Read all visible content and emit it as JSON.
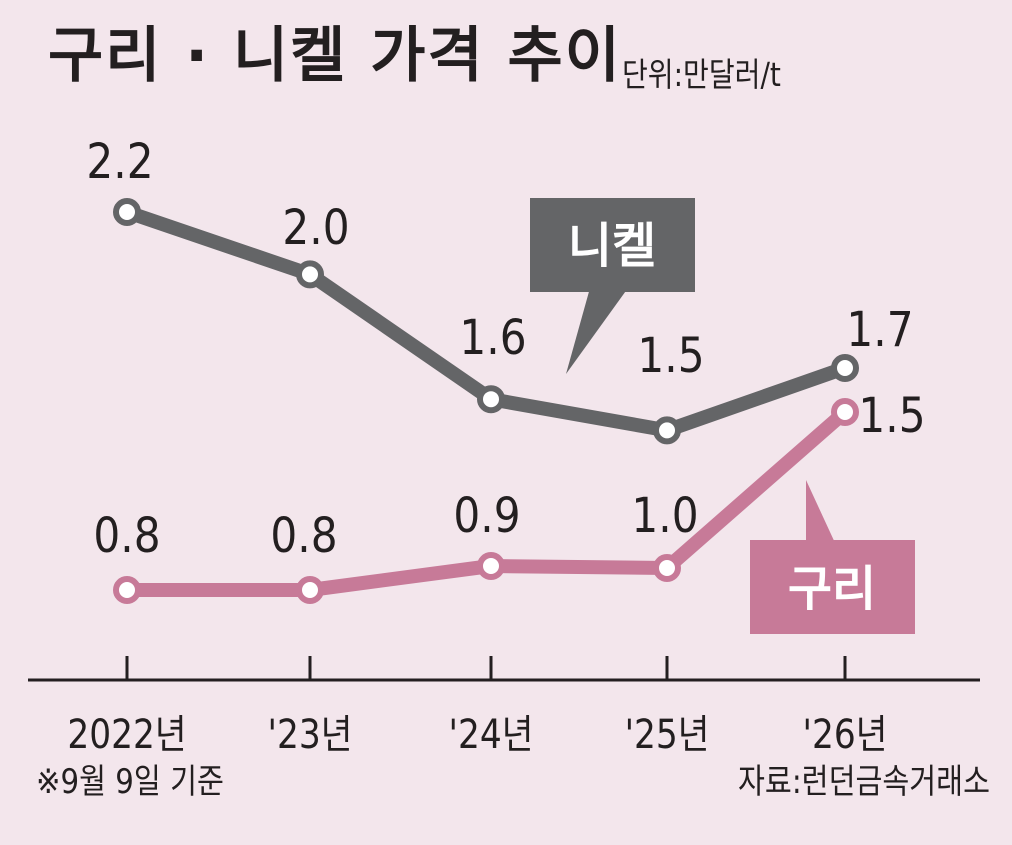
{
  "title": "구리 · 니켈 가격 추이",
  "unit": "단위:만달러/t",
  "note": "※9월 9일 기준",
  "source": "자료:런던금속거래소",
  "colors": {
    "background": "#f3e6ec",
    "nickel": "#646567",
    "copper": "#c77a98",
    "axis": "#231f20",
    "text": "#231f20"
  },
  "chart_data": {
    "type": "line",
    "categories": [
      "2022년",
      "'23년",
      "'24년",
      "'25년",
      "'26년"
    ],
    "series": [
      {
        "name": "니켈",
        "values": [
          2.2,
          2.0,
          1.6,
          1.5,
          1.7
        ]
      },
      {
        "name": "구리",
        "values": [
          0.8,
          0.8,
          0.9,
          1.0,
          1.5
        ]
      }
    ],
    "data_labels": {
      "니켈": [
        "2.2",
        "2.0",
        "1.6",
        "1.5",
        "1.7"
      ],
      "구리": [
        "0.8",
        "0.8",
        "0.9",
        "1.0",
        "1.5"
      ]
    },
    "xlabel": "",
    "ylabel": "",
    "grid": false,
    "legend": "callout labels on lines"
  }
}
